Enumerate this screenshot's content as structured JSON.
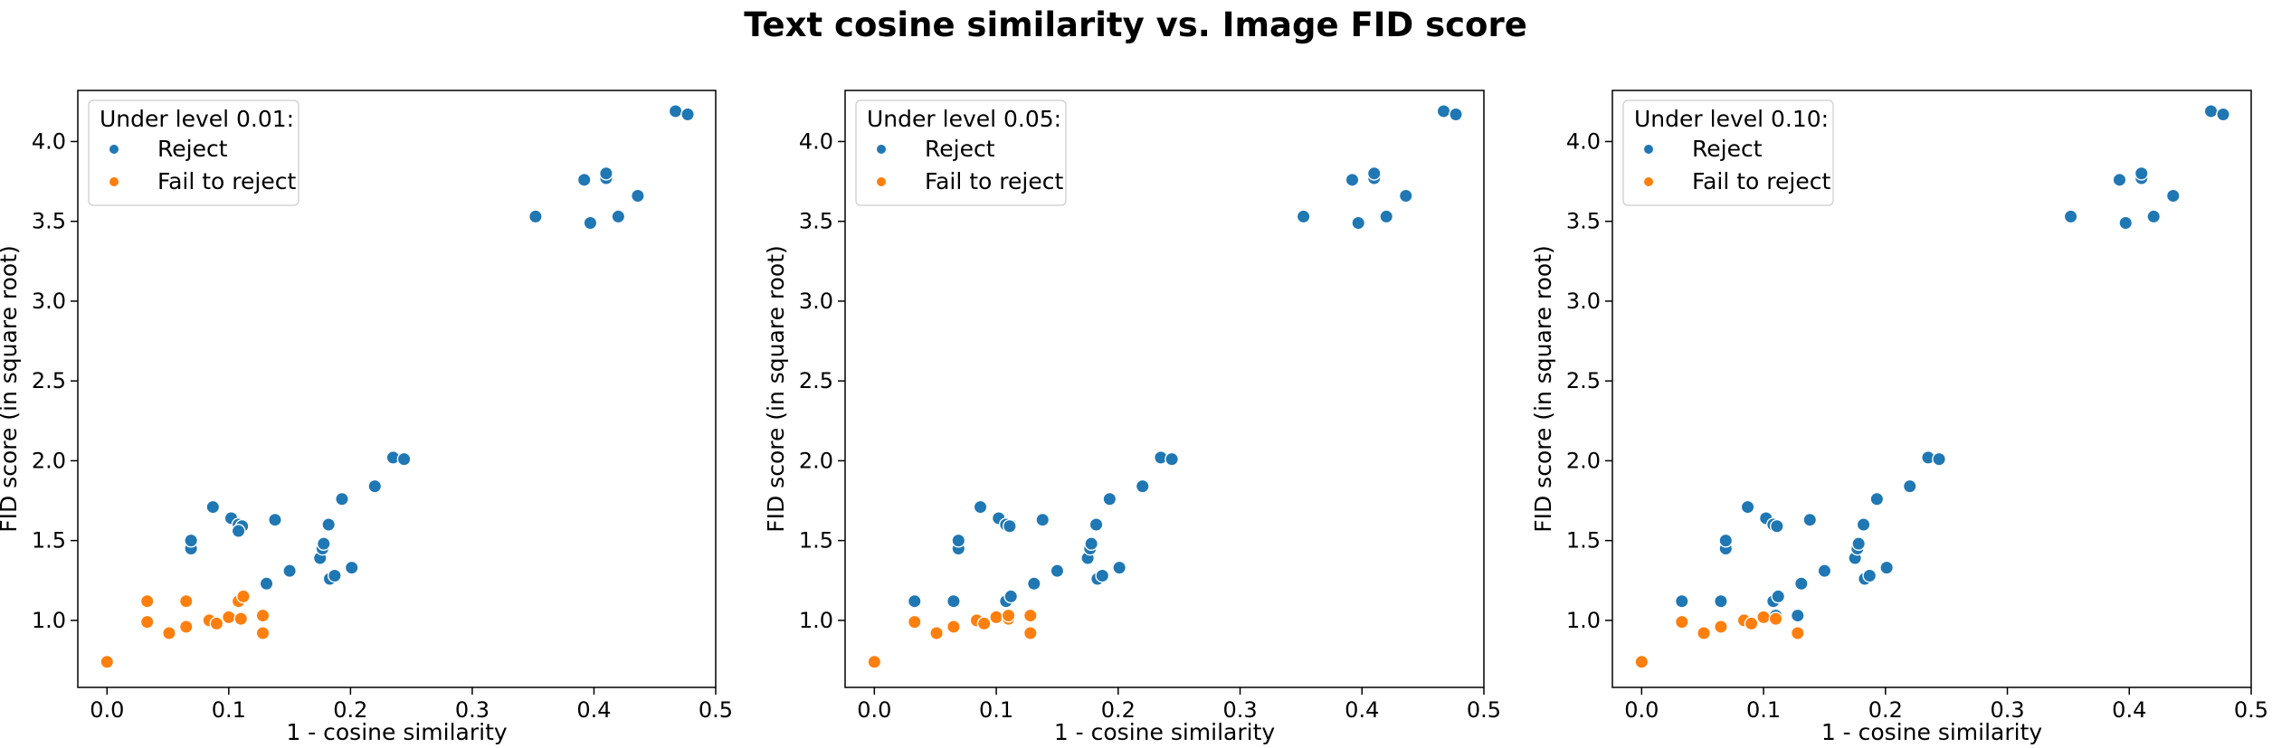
{
  "figure": {
    "title": "Text cosine similarity vs. Image FID score"
  },
  "colors": {
    "reject": "#1f77b4",
    "fail": "#ff7f0e"
  },
  "chart_data": [
    {
      "type": "scatter",
      "legend": {
        "title": "Under level 0.01:",
        "placement": "top-left"
      },
      "xlabel": "1 - cosine similarity",
      "ylabel": "FID score (in square root)",
      "xlim": [
        -0.024,
        0.5
      ],
      "ylim": [
        0.58,
        4.32
      ],
      "xticks": [
        0.0,
        0.1,
        0.2,
        0.3,
        0.4,
        0.5
      ],
      "xtick_labels": [
        "0.0",
        "0.1",
        "0.2",
        "0.3",
        "0.4",
        "0.5"
      ],
      "yticks": [
        1.0,
        1.5,
        2.0,
        2.5,
        3.0,
        3.5,
        4.0
      ],
      "ytick_labels": [
        "1.0",
        "1.5",
        "2.0",
        "2.5",
        "3.0",
        "3.5",
        "4.0"
      ],
      "series": [
        {
          "name": "Reject",
          "color": "#1f77b4",
          "x": [
            0.069,
            0.069,
            0.087,
            0.102,
            0.108,
            0.111,
            0.108,
            0.138,
            0.131,
            0.15,
            0.175,
            0.177,
            0.178,
            0.183,
            0.187,
            0.182,
            0.193,
            0.201,
            0.22,
            0.235,
            0.244,
            0.352,
            0.392,
            0.397,
            0.41,
            0.41,
            0.42,
            0.436,
            0.467,
            0.477
          ],
          "y": [
            1.45,
            1.5,
            1.71,
            1.64,
            1.6,
            1.59,
            1.56,
            1.63,
            1.23,
            1.31,
            1.39,
            1.45,
            1.48,
            1.26,
            1.28,
            1.6,
            1.76,
            1.33,
            1.84,
            2.02,
            2.01,
            3.53,
            3.76,
            3.49,
            3.77,
            3.8,
            3.53,
            3.66,
            4.19,
            4.17
          ]
        },
        {
          "name": "Fail to reject",
          "color": "#ff7f0e",
          "x": [
            0.0,
            0.033,
            0.033,
            0.051,
            0.065,
            0.065,
            0.084,
            0.09,
            0.1,
            0.108,
            0.11,
            0.112,
            0.128,
            0.128
          ],
          "y": [
            0.74,
            0.99,
            1.12,
            0.92,
            0.96,
            1.12,
            1.0,
            0.98,
            1.02,
            1.12,
            1.01,
            1.15,
            1.03,
            0.92
          ]
        }
      ]
    },
    {
      "type": "scatter",
      "legend": {
        "title": "Under level 0.05:",
        "placement": "top-left"
      },
      "xlabel": "1 - cosine similarity",
      "ylabel": "FID score (in square root)",
      "xlim": [
        -0.024,
        0.5
      ],
      "ylim": [
        0.58,
        4.32
      ],
      "xticks": [
        0.0,
        0.1,
        0.2,
        0.3,
        0.4,
        0.5
      ],
      "xtick_labels": [
        "0.0",
        "0.1",
        "0.2",
        "0.3",
        "0.4",
        "0.5"
      ],
      "yticks": [
        1.0,
        1.5,
        2.0,
        2.5,
        3.0,
        3.5,
        4.0
      ],
      "ytick_labels": [
        "1.0",
        "1.5",
        "2.0",
        "2.5",
        "3.0",
        "3.5",
        "4.0"
      ],
      "series": [
        {
          "name": "Reject",
          "color": "#1f77b4",
          "x": [
            0.033,
            0.065,
            0.069,
            0.069,
            0.087,
            0.102,
            0.108,
            0.111,
            0.108,
            0.112,
            0.138,
            0.131,
            0.15,
            0.175,
            0.177,
            0.178,
            0.183,
            0.187,
            0.182,
            0.193,
            0.201,
            0.22,
            0.235,
            0.244,
            0.352,
            0.392,
            0.397,
            0.41,
            0.41,
            0.42,
            0.436,
            0.467,
            0.477
          ],
          "y": [
            1.12,
            1.12,
            1.45,
            1.5,
            1.71,
            1.64,
            1.6,
            1.59,
            1.12,
            1.15,
            1.63,
            1.23,
            1.31,
            1.39,
            1.45,
            1.48,
            1.26,
            1.28,
            1.6,
            1.76,
            1.33,
            1.84,
            2.02,
            2.01,
            3.53,
            3.76,
            3.49,
            3.77,
            3.8,
            3.53,
            3.66,
            4.19,
            4.17
          ]
        },
        {
          "name": "Fail to reject",
          "color": "#ff7f0e",
          "x": [
            0.0,
            0.033,
            0.051,
            0.065,
            0.084,
            0.09,
            0.1,
            0.11,
            0.11,
            0.128,
            0.128
          ],
          "y": [
            0.74,
            0.99,
            0.92,
            0.96,
            1.0,
            0.98,
            1.02,
            1.01,
            1.03,
            1.03,
            0.92
          ]
        }
      ]
    },
    {
      "type": "scatter",
      "legend": {
        "title": "Under level 0.10:",
        "placement": "top-left"
      },
      "xlabel": "1 - cosine similarity",
      "ylabel": "FID score (in square root)",
      "xlim": [
        -0.024,
        0.5
      ],
      "ylim": [
        0.58,
        4.32
      ],
      "xticks": [
        0.0,
        0.1,
        0.2,
        0.3,
        0.4,
        0.5
      ],
      "xtick_labels": [
        "0.0",
        "0.1",
        "0.2",
        "0.3",
        "0.4",
        "0.5"
      ],
      "yticks": [
        1.0,
        1.5,
        2.0,
        2.5,
        3.0,
        3.5,
        4.0
      ],
      "ytick_labels": [
        "1.0",
        "1.5",
        "2.0",
        "2.5",
        "3.0",
        "3.5",
        "4.0"
      ],
      "series": [
        {
          "name": "Reject",
          "color": "#1f77b4",
          "x": [
            0.033,
            0.065,
            0.069,
            0.069,
            0.087,
            0.102,
            0.108,
            0.111,
            0.108,
            0.112,
            0.128,
            0.11,
            0.138,
            0.131,
            0.15,
            0.175,
            0.177,
            0.178,
            0.183,
            0.187,
            0.182,
            0.193,
            0.201,
            0.22,
            0.235,
            0.244,
            0.352,
            0.392,
            0.397,
            0.41,
            0.41,
            0.42,
            0.436,
            0.467,
            0.477
          ],
          "y": [
            1.12,
            1.12,
            1.45,
            1.5,
            1.71,
            1.64,
            1.6,
            1.59,
            1.12,
            1.15,
            1.03,
            1.03,
            1.63,
            1.23,
            1.31,
            1.39,
            1.45,
            1.48,
            1.26,
            1.28,
            1.6,
            1.76,
            1.33,
            1.84,
            2.02,
            2.01,
            3.53,
            3.76,
            3.49,
            3.77,
            3.8,
            3.53,
            3.66,
            4.19,
            4.17
          ]
        },
        {
          "name": "Fail to reject",
          "color": "#ff7f0e",
          "x": [
            0.0,
            0.033,
            0.051,
            0.065,
            0.084,
            0.09,
            0.1,
            0.11,
            0.128
          ],
          "y": [
            0.74,
            0.99,
            0.92,
            0.96,
            1.0,
            0.98,
            1.02,
            1.01,
            0.92
          ]
        }
      ]
    }
  ]
}
